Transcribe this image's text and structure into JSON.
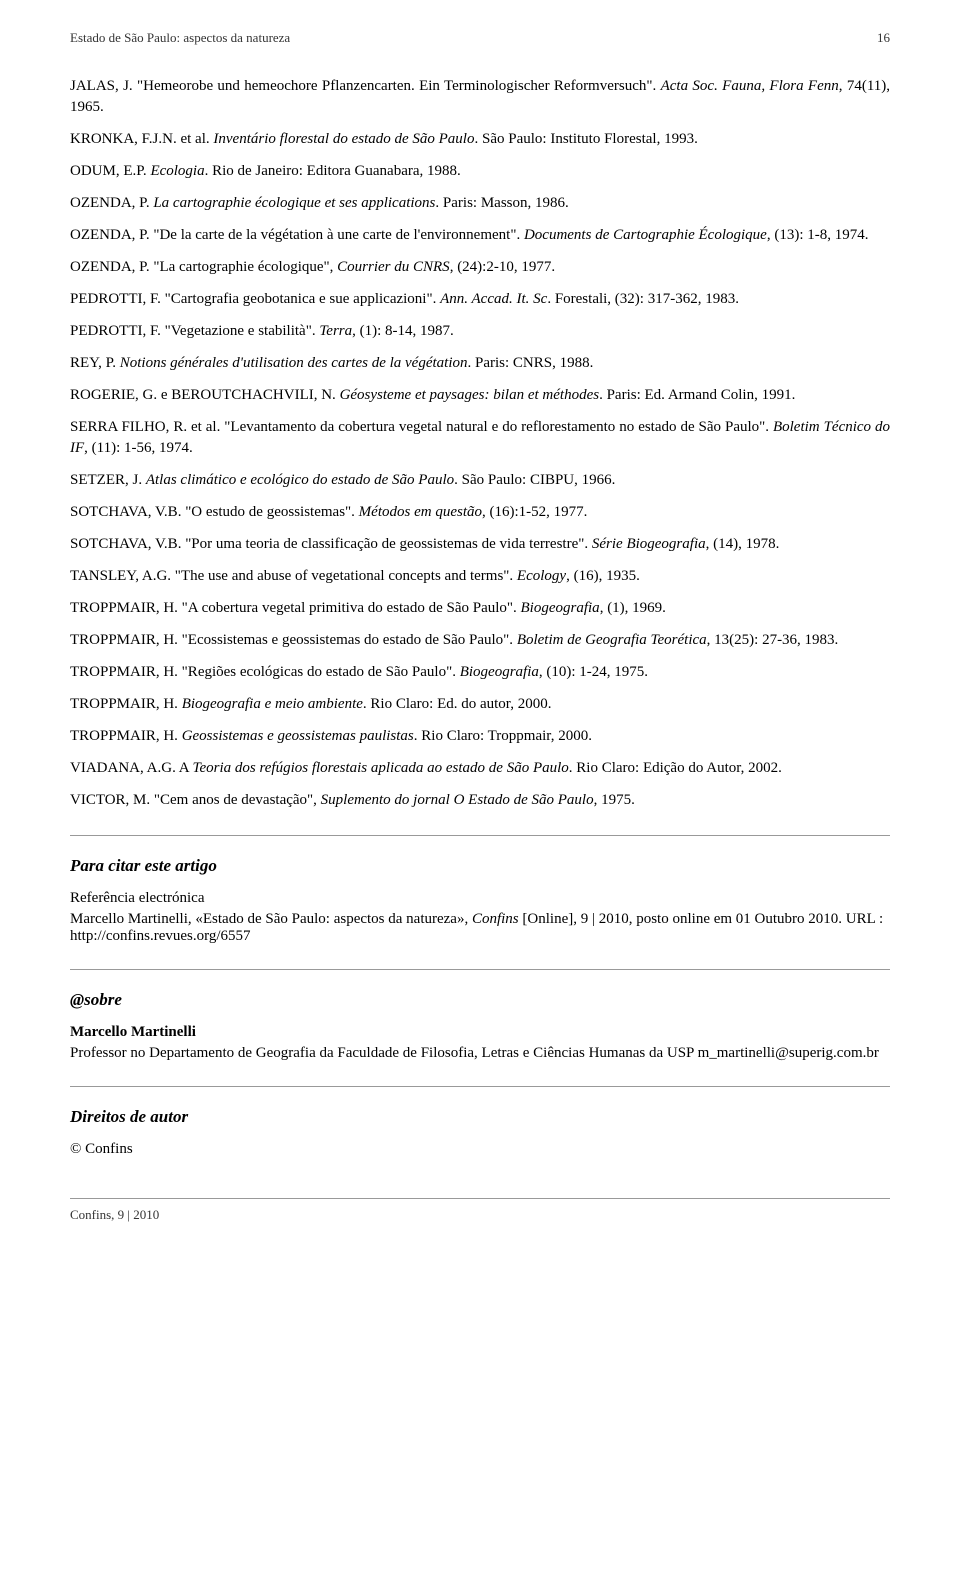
{
  "header": {
    "title": "Estado de São Paulo: aspectos da natureza",
    "page_number": "16"
  },
  "references": [
    {
      "html": "JALAS, J. \"Hemeorobe und hemeochore Pflanzencarten. Ein Terminologischer Reformversuch\". <em>Acta Soc. Fauna, Flora Fenn</em>, 74(11), 1965."
    },
    {
      "html": "KRONKA, F.J.N. et al. <em>Inventário florestal do estado de São Paulo</em>. São Paulo: Instituto Florestal, 1993."
    },
    {
      "html": "ODUM, E.P. <em>Ecologia</em>. Rio de Janeiro: Editora Guanabara, 1988."
    },
    {
      "html": "OZENDA, P. <em>La cartographie écologique et ses applications</em>. Paris: Masson, 1986."
    },
    {
      "html": "OZENDA, P. \"De la carte de la végétation à une carte de l'environnement\". <em>Documents de Cartographie Écologique</em>, (13): 1-8, 1974."
    },
    {
      "html": "OZENDA, P. \"La cartographie écologique\", <em>Courrier du CNRS</em>, (24):2-10, 1977."
    },
    {
      "html": "PEDROTTI, F. \"Cartografia geobotanica e sue applicazioni\". <em>Ann. Accad. It. Sc</em>. Forestali, (32): 317-362, 1983."
    },
    {
      "html": "PEDROTTI, F. \"Vegetazione e stabilità\". <em>Terra</em>, (1): 8-14, 1987."
    },
    {
      "html": "REY, P. <em>Notions générales d'utilisation des cartes de la végétation</em>. Paris: CNRS, 1988."
    },
    {
      "html": "ROGERIE, G. e BEROUTCHACHVILI, N. <em>Géosysteme et paysages: bilan et méthodes</em>. Paris: Ed. Armand Colin, 1991."
    },
    {
      "html": "SERRA FILHO, R. et al. \"Levantamento da cobertura vegetal natural e do reflorestamento no estado de São Paulo\". <em>Boletim Técnico do IF</em>, (11): 1-56, 1974."
    },
    {
      "html": "SETZER, J. <em>Atlas climático e ecológico do estado de São Paulo</em>. São Paulo: CIBPU, 1966."
    },
    {
      "html": "SOTCHAVA, V.B. \"O estudo de geossistemas\". <em>Métodos em questão</em>, (16):1-52, 1977."
    },
    {
      "html": "SOTCHAVA, V.B. \"Por uma teoria de classificação de geossistemas de vida terrestre\". <em>Série Biogeografia</em>, (14), 1978."
    },
    {
      "html": "TANSLEY, A.G. \"The use and abuse of vegetational concepts and terms\". <em>Ecology</em>, (16), 1935."
    },
    {
      "html": "TROPPMAIR, H. \"A cobertura vegetal primitiva do estado de São Paulo\". <em>Biogeografia</em>, (1), 1969."
    },
    {
      "html": "TROPPMAIR, H. \"Ecossistemas e geossistemas do estado de São Paulo\". <em>Boletim de Geografia Teorética</em>, 13(25): 27-36, 1983."
    },
    {
      "html": "TROPPMAIR, H. \"Regiões ecológicas do estado de São Paulo\". <em>Biogeografia</em>, (10): 1-24, 1975."
    },
    {
      "html": "TROPPMAIR, H. <em>Biogeografia e meio ambiente</em>. Rio Claro: Ed. do autor, 2000."
    },
    {
      "html": "TROPPMAIR, H. <em>Geossistemas e geossistemas paulistas</em>. Rio Claro: Troppmair, 2000."
    },
    {
      "html": "VIADANA, A.G. A <em>Teoria dos refúgios florestais aplicada ao estado de São Paulo</em>. Rio Claro: Edição do Autor, 2002."
    },
    {
      "html": "VICTOR, M. \"Cem anos de devastação\", <em>Suplemento do jornal O Estado de São Paulo</em>, 1975."
    }
  ],
  "cite_section": {
    "heading": "Para citar este artigo",
    "subheading": "Referência electrónica",
    "text_html": "Marcello Martinelli, «Estado de São Paulo: aspectos da natureza»,  <em>Confins</em> [Online], 9 | 2010, posto online em 01 Outubro 2010. URL : http://confins.revues.org/6557"
  },
  "about_section": {
    "heading": "@sobre",
    "author": "Marcello Martinelli",
    "affiliation": "Professor no Departamento de Geografia da Faculdade de Filosofia, Letras e Ciências Humanas da USP  m_martinelli@superig.com.br"
  },
  "rights_section": {
    "heading": "Direitos de autor",
    "text": "© Confins"
  },
  "footer": {
    "text": "Confins, 9 | 2010"
  }
}
